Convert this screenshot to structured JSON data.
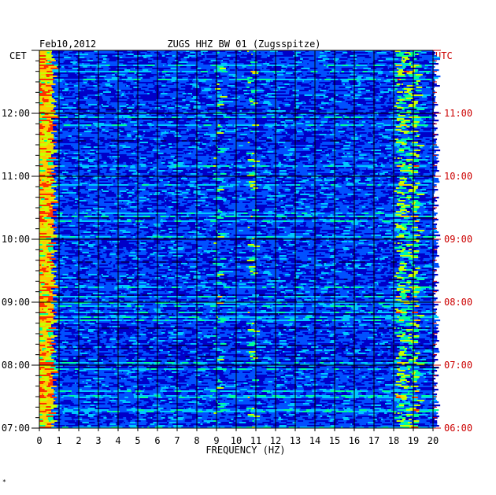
{
  "header": {
    "date": "Feb10,2012",
    "station": "ZUGS HHZ BW 01 (Zugsspitze)"
  },
  "left_axis_unit": "CET",
  "right_axis_unit": "UTC",
  "corner_mark": "*",
  "colors": {
    "background": "#0000b4",
    "cet_labels": "#000000",
    "utc_labels": "#cc0000",
    "grid": "#000000"
  },
  "chart_data": {
    "type": "heatmap",
    "title": "ZUGS HHZ BW 01 (Zugsspitze)",
    "xlabel": "FREQUENCY (HZ)",
    "xlim": [
      0,
      20
    ],
    "x_ticks": [
      "0",
      "1",
      "2",
      "3",
      "4",
      "5",
      "6",
      "7",
      "8",
      "9",
      "10",
      "11",
      "12",
      "13",
      "14",
      "15",
      "16",
      "17",
      "18",
      "19",
      "20"
    ],
    "ylim_cet": [
      "07:00",
      "13:00"
    ],
    "y_ticks_cet": [
      "07:00",
      "08:00",
      "09:00",
      "10:00",
      "11:00",
      "12:00"
    ],
    "y_ticks_utc": [
      "06:00",
      "07:00",
      "08:00",
      "09:00",
      "10:00",
      "11:00"
    ],
    "grid": true,
    "colorscale": [
      "#00006e",
      "#0000c8",
      "#0050ff",
      "#00c8ff",
      "#00ff96",
      "#c8ff00",
      "#ffc800",
      "#ff3200"
    ]
  }
}
